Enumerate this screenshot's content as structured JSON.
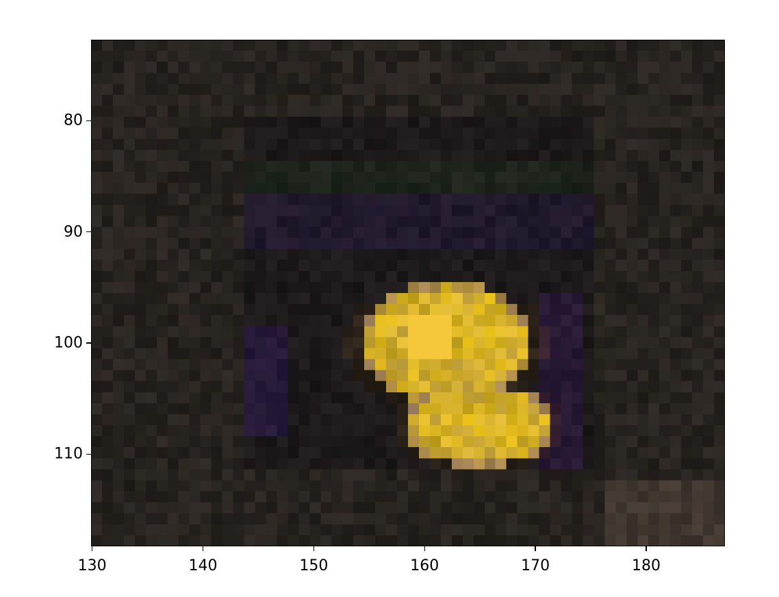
{
  "figure": {
    "x_ticks": [
      {
        "value": 130,
        "label": "130"
      },
      {
        "value": 140,
        "label": "140"
      },
      {
        "value": 150,
        "label": "150"
      },
      {
        "value": 160,
        "label": "160"
      },
      {
        "value": 170,
        "label": "170"
      },
      {
        "value": 180,
        "label": "180"
      }
    ],
    "y_ticks": [
      {
        "value": 80,
        "label": "80"
      },
      {
        "value": 90,
        "label": "90"
      },
      {
        "value": 100,
        "label": "100"
      },
      {
        "value": 110,
        "label": "110"
      }
    ],
    "x_range": [
      129.9,
      187.1
    ],
    "y_range": [
      72.7,
      118.3
    ],
    "y_inverted": true,
    "image": {
      "description_colors": {
        "background": "#1f1a17",
        "flower_yellow": "#d9b81a",
        "flower_highlight": "#f2c83a",
        "shadow": "#0f0d0b",
        "purple_tint": "#2a1d3a"
      }
    }
  }
}
